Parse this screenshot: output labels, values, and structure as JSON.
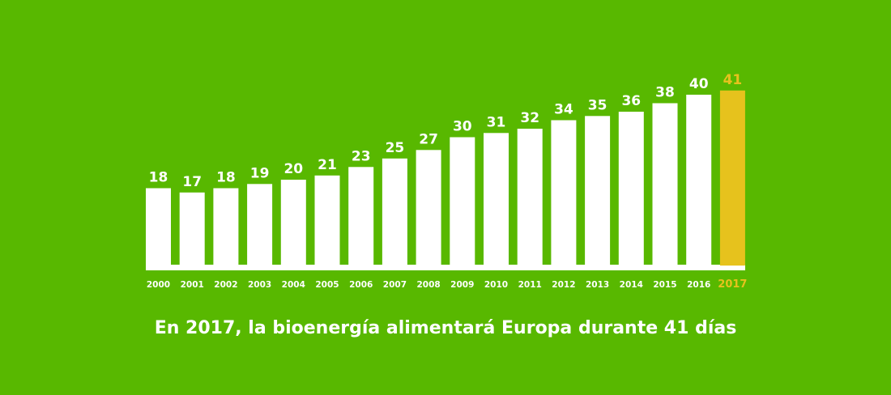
{
  "colors": {
    "background": "#58b800",
    "bar": "#ffffff",
    "highlight_bar": "#e6c21d",
    "text": "#ffffff",
    "highlight_text": "#e6c21d"
  },
  "caption": "En 2017, la bioenergía alimentará Europa durante 41 días",
  "chart_data": {
    "type": "bar",
    "title": "",
    "xlabel": "",
    "ylabel": "",
    "categories": [
      "2000",
      "2001",
      "2002",
      "2003",
      "2004",
      "2005",
      "2006",
      "2007",
      "2008",
      "2009",
      "2010",
      "2011",
      "2012",
      "2013",
      "2014",
      "2015",
      "2016",
      "2017"
    ],
    "values": [
      18,
      17,
      18,
      19,
      20,
      21,
      23,
      25,
      27,
      30,
      31,
      32,
      34,
      35,
      36,
      38,
      40,
      41
    ],
    "highlight_category": "2017",
    "ylim": [
      0,
      41
    ],
    "grid": false,
    "legend": "none",
    "data_labels": true
  }
}
